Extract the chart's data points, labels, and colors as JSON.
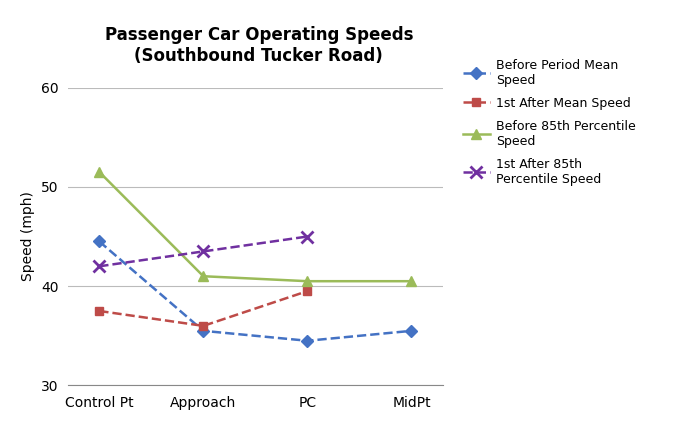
{
  "title": "Passenger Car Operating Speeds\n(Southbound Tucker Road)",
  "xlabel": "",
  "ylabel": "Speed (mph)",
  "x_labels": [
    "Control Pt",
    "Approach",
    "PC",
    "MidPt"
  ],
  "x_values": [
    0,
    1,
    2,
    3
  ],
  "ylim": [
    30,
    60
  ],
  "yticks": [
    30,
    40,
    50,
    60
  ],
  "series": {
    "before_mean": {
      "label": "Before Period Mean\nSpeed",
      "values": [
        44.5,
        35.5,
        34.5,
        35.5
      ],
      "color": "#4472C4",
      "linestyle": "--",
      "marker": "D",
      "markersize": 6,
      "linewidth": 1.8
    },
    "after_mean": {
      "label": "1st After Mean Speed",
      "values": [
        37.5,
        36.0,
        39.5,
        null
      ],
      "color": "#BE4B48",
      "linestyle": "--",
      "marker": "s",
      "markersize": 6,
      "linewidth": 1.8
    },
    "before_85th": {
      "label": "Before 85th Percentile\nSpeed",
      "values": [
        51.5,
        41.0,
        40.5,
        40.5
      ],
      "color": "#9BBB59",
      "linestyle": "-",
      "marker": "^",
      "markersize": 7,
      "linewidth": 1.8
    },
    "after_85th": {
      "label": "1st After 85th\nPercentile Speed",
      "values": [
        42.0,
        43.5,
        45.0,
        null
      ],
      "color": "#7030A0",
      "linestyle": "--",
      "marker": "x",
      "markersize": 8,
      "linewidth": 1.8
    }
  },
  "background_color": "#ffffff",
  "grid_color": "#bbbbbb",
  "title_fontsize": 12,
  "axis_label_fontsize": 10,
  "tick_fontsize": 10,
  "legend_fontsize": 9
}
